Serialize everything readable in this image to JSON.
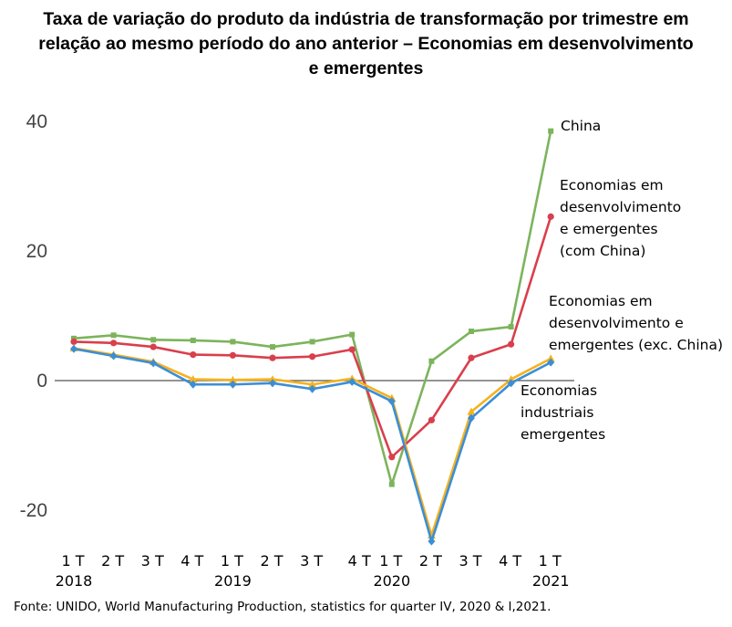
{
  "title": {
    "line1": "Taxa de variação do produto da indústria de transformação por trimestre em",
    "line2": "relação ao mesmo período do ano anterior – Economias em desenvolvimento",
    "line3": "e emergentes"
  },
  "source": "Fonte: UNIDO, World Manufacturing Production, statistics for quarter IV, 2020 & I,2021.",
  "chart_data": {
    "type": "line",
    "ylim": [
      -25,
      40
    ],
    "yticks": [
      "40",
      "20",
      "0",
      "-20"
    ],
    "x_quarters": [
      "1 T",
      "2 T",
      "3 T",
      "4 T",
      "1 T",
      "2 T",
      "3 T",
      "4 T",
      "1 T",
      "2 T",
      "3 T",
      "4 T",
      "1 T"
    ],
    "x_years": [
      {
        "index": 0,
        "label": "2018"
      },
      {
        "index": 4,
        "label": "2019"
      },
      {
        "index": 8,
        "label": "2020"
      },
      {
        "index": 12,
        "label": "2021"
      }
    ],
    "series": [
      {
        "name": "China",
        "label_lines": [
          "China"
        ],
        "color": "#7cb45c",
        "marker": "square",
        "values": [
          6.5,
          7.0,
          6.3,
          6.2,
          6.0,
          5.2,
          6.0,
          7.1,
          -16.0,
          3.0,
          7.6,
          8.3,
          38.5
        ]
      },
      {
        "name": "Economias em desenvolvimento e emergentes (com China)",
        "label_lines": [
          "Economias em",
          "desenvolvimento",
          "e emergentes",
          "(com China)"
        ],
        "color": "#d93f4c",
        "marker": "circle",
        "values": [
          6.0,
          5.8,
          5.2,
          4.0,
          3.9,
          3.5,
          3.7,
          4.8,
          -11.8,
          -6.1,
          3.5,
          5.6,
          25.3
        ]
      },
      {
        "name": "Economias em desenvolvimento e emergentes (exc. China)",
        "label_lines": [
          "Economias em",
          "desenvolvimento e",
          "emergentes (exc. China)"
        ],
        "color": "#f5b21e",
        "marker": "triangle",
        "values": [
          5.0,
          4.0,
          2.9,
          0.2,
          0.1,
          0.2,
          -0.6,
          0.3,
          -2.7,
          -23.9,
          -4.8,
          0.2,
          3.4
        ]
      },
      {
        "name": "Economias industriais emergentes",
        "label_lines": [
          "Economias",
          "industriais",
          "emergentes"
        ],
        "color": "#3b8ed6",
        "marker": "diamond",
        "values": [
          4.9,
          3.8,
          2.7,
          -0.6,
          -0.6,
          -0.4,
          -1.3,
          -0.2,
          -3.2,
          -24.8,
          -5.8,
          -0.4,
          2.8
        ]
      }
    ]
  }
}
